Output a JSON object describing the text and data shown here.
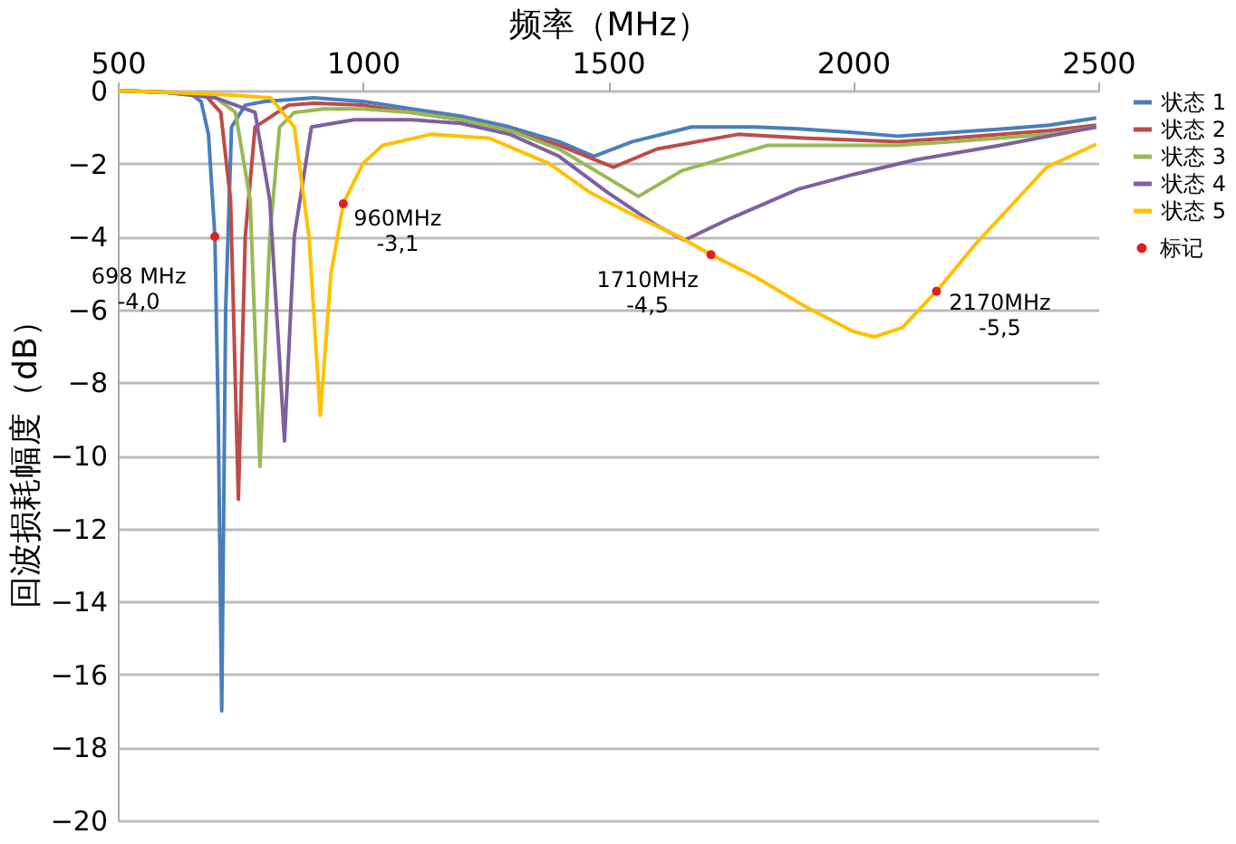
{
  "chart_data": {
    "type": "line",
    "xlabel": "频率（MHz）",
    "ylabel": "回波损耗幅度（dB）",
    "xlim": [
      500,
      2500
    ],
    "xticks": [
      500,
      1000,
      1500,
      2000,
      2500
    ],
    "ylim": [
      -20,
      0
    ],
    "yticks": [
      0,
      -2,
      -4,
      -6,
      -8,
      -10,
      -12,
      -14,
      -16,
      -18,
      -20
    ],
    "grid": "y",
    "legend": "right",
    "line_style": "solid",
    "series": [
      {
        "name": "状态 1",
        "color": "#4a7ebb",
        "x": [
          500,
          600,
          650,
          670,
          685,
          698,
          705,
          712,
          720,
          732,
          760,
          800,
          900,
          1000,
          1100,
          1200,
          1300,
          1400,
          1471,
          1550,
          1670,
          1800,
          1888,
          2000,
          2091,
          2200,
          2308,
          2400,
          2496
        ],
        "values": [
          0,
          -0.05,
          -0.1,
          -0.3,
          -1.2,
          -4.0,
          -9,
          -17,
          -6,
          -1,
          -0.4,
          -0.3,
          -0.2,
          -0.3,
          -0.5,
          -0.7,
          -1.0,
          -1.4,
          -1.8,
          -1.4,
          -1.0,
          -1.0,
          -1.05,
          -1.15,
          -1.25,
          -1.15,
          -1.05,
          -0.95,
          -0.75
        ]
      },
      {
        "name": "状态 2",
        "color": "#be4b48",
        "x": [
          500,
          600,
          680,
          710,
          730,
          746,
          760,
          780,
          848,
          900,
          1000,
          1100,
          1200,
          1300,
          1400,
          1511,
          1600,
          1765,
          1900,
          2091,
          2200,
          2400,
          2496
        ],
        "values": [
          0,
          -0.05,
          -0.15,
          -0.6,
          -3,
          -11.2,
          -4,
          -1,
          -0.4,
          -0.35,
          -0.4,
          -0.6,
          -0.8,
          -1.1,
          -1.5,
          -2.1,
          -1.6,
          -1.2,
          -1.3,
          -1.4,
          -1.3,
          -1.1,
          -0.95
        ]
      },
      {
        "name": "状态 3",
        "color": "#98b954",
        "x": [
          500,
          600,
          700,
          740,
          770,
          790,
          810,
          830,
          860,
          920,
          1000,
          1100,
          1200,
          1300,
          1400,
          1562,
          1650,
          1826,
          1950,
          2091,
          2200,
          2400,
          2496
        ],
        "values": [
          0,
          -0.05,
          -0.2,
          -0.6,
          -3,
          -10.3,
          -4,
          -1,
          -0.6,
          -0.5,
          -0.5,
          -0.6,
          -0.8,
          -1.1,
          -1.6,
          -2.9,
          -2.2,
          -1.5,
          -1.5,
          -1.5,
          -1.4,
          -1.2,
          -1.0
        ]
      },
      {
        "name": "状态 4",
        "color": "#7d60a0",
        "x": [
          500,
          600,
          700,
          780,
          810,
          840,
          860,
          895,
          982,
          1100,
          1200,
          1300,
          1400,
          1500,
          1600,
          1656,
          1750,
          1888,
          2000,
          2127,
          2300,
          2496
        ],
        "values": [
          0,
          -0.05,
          -0.2,
          -0.6,
          -3,
          -9.6,
          -4,
          -1.0,
          -0.8,
          -0.8,
          -0.9,
          -1.2,
          -1.8,
          -2.8,
          -3.7,
          -4.1,
          -3.5,
          -2.7,
          -2.3,
          -1.9,
          -1.5,
          -1.0
        ]
      },
      {
        "name": "状态 5",
        "color": "#ffc000",
        "x": [
          500,
          600,
          700,
          812,
          860,
          890,
          913,
          935,
          960,
          1000,
          1040,
          1138,
          1257,
          1380,
          1464,
          1550,
          1645,
          1710,
          1800,
          1900,
          2000,
          2043,
          2100,
          2170,
          2250,
          2395,
          2496
        ],
        "values": [
          0,
          -0.05,
          -0.1,
          -0.2,
          -1.0,
          -4,
          -8.9,
          -5,
          -3.1,
          -2,
          -1.5,
          -1.2,
          -1.3,
          -2.0,
          -2.8,
          -3.4,
          -4.0,
          -4.5,
          -5.1,
          -5.9,
          -6.6,
          -6.75,
          -6.5,
          -5.5,
          -4.2,
          -2.1,
          -1.47
        ]
      },
      {
        "name": "标记",
        "type": "scatter",
        "marker": "circle",
        "color": "#e02020",
        "x": [
          698,
          960,
          1710,
          2170
        ],
        "values": [
          -4.0,
          -3.1,
          -4.5,
          -5.5
        ]
      }
    ],
    "annotations": [
      {
        "text": "698 MHz\n-4,0",
        "x": 698,
        "y": -4.0
      },
      {
        "text": "960MHz\n-3,1",
        "x": 960,
        "y": -3.1
      },
      {
        "text": "1710MHz\n-4,5",
        "x": 1710,
        "y": -4.5
      },
      {
        "text": "2170MHz\n-5,5",
        "x": 2170,
        "y": -5.5
      }
    ]
  }
}
